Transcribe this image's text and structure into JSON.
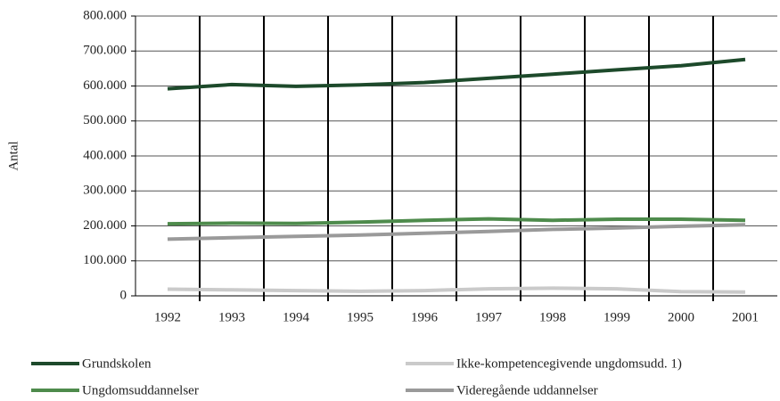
{
  "chart_data": {
    "type": "line",
    "y_label": "Antal",
    "categories": [
      "1992",
      "1993",
      "1994",
      "1995",
      "1996",
      "1997",
      "1998",
      "1999",
      "2000",
      "2001"
    ],
    "series": [
      {
        "name": "Grundskolen",
        "color": "#1d4a2b",
        "values": [
          592000,
          604000,
          599000,
          603000,
          610000,
          622000,
          634000,
          646000,
          658000,
          676000
        ]
      },
      {
        "name": "Ikke-kompetencegivende ungdomsudd. 1)",
        "color": "#cacaca",
        "values": [
          19000,
          17000,
          15000,
          13000,
          15000,
          20000,
          22000,
          20000,
          12000,
          11000
        ]
      },
      {
        "name": "Ungdomsuddannelser",
        "color": "#4e8b4c",
        "values": [
          206000,
          208000,
          207000,
          211000,
          216000,
          220000,
          216000,
          219000,
          219000,
          216000
        ]
      },
      {
        "name": "Videregående uddannelser",
        "color": "#9a9a9a",
        "values": [
          162000,
          166000,
          170000,
          174000,
          179000,
          184000,
          190000,
          194000,
          199000,
          203000
        ]
      }
    ],
    "ylim": [
      0,
      800000
    ],
    "yticks": [
      0,
      {
        "value": 100000,
        "label": "100.000"
      },
      {
        "value": 200000,
        "label": "200.000"
      },
      {
        "value": 300000,
        "label": "300.000"
      },
      {
        "value": 400000,
        "label": "400.000"
      },
      {
        "value": 500000,
        "label": "500.000"
      },
      {
        "value": 600000,
        "label": "600.000"
      },
      {
        "value": 700000,
        "label": "700.000"
      },
      {
        "value": 800000,
        "label": "800.000"
      }
    ],
    "grid": true
  }
}
